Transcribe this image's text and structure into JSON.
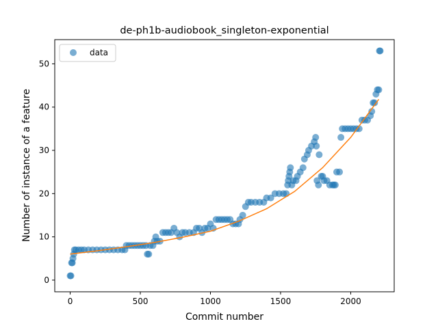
{
  "chart_data": {
    "type": "scatter",
    "title": "de-ph1b-audiobook_singleton-exponential",
    "xlabel": "Commit number",
    "ylabel": "Number of instance of a feature",
    "xlim": [
      -110,
      2310
    ],
    "ylim": [
      -2.7,
      55.6
    ],
    "xticks": [
      0,
      500,
      1000,
      1500,
      2000
    ],
    "yticks": [
      0,
      10,
      20,
      30,
      40,
      50
    ],
    "grid": false,
    "legend": {
      "placement": "top-left",
      "entries": [
        "data"
      ]
    },
    "colors": {
      "data": "#1f77b4",
      "fit": "#ff7f0e"
    },
    "series": [
      {
        "name": "data",
        "kind": "scatter",
        "points": [
          [
            0,
            1
          ],
          [
            5,
            1
          ],
          [
            10,
            4
          ],
          [
            15,
            4
          ],
          [
            20,
            5
          ],
          [
            25,
            6
          ],
          [
            30,
            7
          ],
          [
            40,
            7
          ],
          [
            60,
            7
          ],
          [
            80,
            7
          ],
          [
            100,
            7
          ],
          [
            130,
            7
          ],
          [
            160,
            7
          ],
          [
            190,
            7
          ],
          [
            220,
            7
          ],
          [
            250,
            7
          ],
          [
            280,
            7
          ],
          [
            310,
            7
          ],
          [
            340,
            7
          ],
          [
            370,
            7
          ],
          [
            390,
            7
          ],
          [
            400,
            8
          ],
          [
            420,
            8
          ],
          [
            440,
            8
          ],
          [
            460,
            8
          ],
          [
            480,
            8
          ],
          [
            500,
            8
          ],
          [
            520,
            8
          ],
          [
            540,
            8
          ],
          [
            550,
            6
          ],
          [
            560,
            6
          ],
          [
            570,
            8
          ],
          [
            590,
            8
          ],
          [
            600,
            9
          ],
          [
            610,
            10
          ],
          [
            620,
            9
          ],
          [
            640,
            9
          ],
          [
            660,
            11
          ],
          [
            680,
            11
          ],
          [
            700,
            11
          ],
          [
            720,
            11
          ],
          [
            740,
            12
          ],
          [
            760,
            11
          ],
          [
            780,
            10
          ],
          [
            800,
            11
          ],
          [
            820,
            11
          ],
          [
            850,
            11
          ],
          [
            880,
            11
          ],
          [
            900,
            12
          ],
          [
            920,
            12
          ],
          [
            940,
            11
          ],
          [
            960,
            12
          ],
          [
            980,
            12
          ],
          [
            1000,
            13
          ],
          [
            1020,
            12
          ],
          [
            1040,
            14
          ],
          [
            1060,
            14
          ],
          [
            1080,
            14
          ],
          [
            1100,
            14
          ],
          [
            1120,
            14
          ],
          [
            1140,
            14
          ],
          [
            1160,
            13
          ],
          [
            1180,
            13
          ],
          [
            1200,
            13
          ],
          [
            1210,
            14
          ],
          [
            1230,
            15
          ],
          [
            1250,
            17
          ],
          [
            1270,
            18
          ],
          [
            1290,
            18
          ],
          [
            1320,
            18
          ],
          [
            1350,
            18
          ],
          [
            1380,
            18
          ],
          [
            1400,
            19
          ],
          [
            1430,
            19
          ],
          [
            1460,
            20
          ],
          [
            1490,
            20
          ],
          [
            1520,
            20
          ],
          [
            1540,
            20
          ],
          [
            1550,
            22
          ],
          [
            1555,
            23
          ],
          [
            1560,
            24
          ],
          [
            1565,
            25
          ],
          [
            1570,
            26
          ],
          [
            1580,
            22
          ],
          [
            1590,
            23
          ],
          [
            1610,
            23
          ],
          [
            1620,
            24
          ],
          [
            1640,
            25
          ],
          [
            1660,
            26
          ],
          [
            1670,
            28
          ],
          [
            1690,
            29
          ],
          [
            1700,
            30
          ],
          [
            1720,
            31
          ],
          [
            1740,
            32
          ],
          [
            1750,
            33
          ],
          [
            1755,
            31
          ],
          [
            1760,
            23
          ],
          [
            1770,
            22
          ],
          [
            1775,
            29
          ],
          [
            1790,
            24
          ],
          [
            1800,
            24
          ],
          [
            1810,
            23
          ],
          [
            1830,
            23
          ],
          [
            1850,
            22
          ],
          [
            1870,
            22
          ],
          [
            1880,
            22
          ],
          [
            1890,
            22
          ],
          [
            1900,
            25
          ],
          [
            1920,
            25
          ],
          [
            1930,
            33
          ],
          [
            1940,
            35
          ],
          [
            1960,
            35
          ],
          [
            1980,
            35
          ],
          [
            2000,
            35
          ],
          [
            2020,
            35
          ],
          [
            2040,
            35
          ],
          [
            2060,
            35
          ],
          [
            2080,
            37
          ],
          [
            2100,
            37
          ],
          [
            2120,
            37
          ],
          [
            2140,
            38
          ],
          [
            2150,
            39
          ],
          [
            2160,
            41
          ],
          [
            2170,
            41
          ],
          [
            2180,
            43
          ],
          [
            2190,
            44
          ],
          [
            2200,
            44
          ],
          [
            2205,
            53
          ],
          [
            2210,
            53
          ]
        ]
      },
      {
        "name": "",
        "kind": "line",
        "x": [
          0,
          200,
          400,
          600,
          800,
          1000,
          1200,
          1400,
          1600,
          1800,
          2000,
          2200
        ],
        "y": [
          6.0,
          6.8,
          7.7,
          8.7,
          9.9,
          11.3,
          13.6,
          16.5,
          20.5,
          26.0,
          33.0,
          41.8
        ]
      }
    ]
  }
}
